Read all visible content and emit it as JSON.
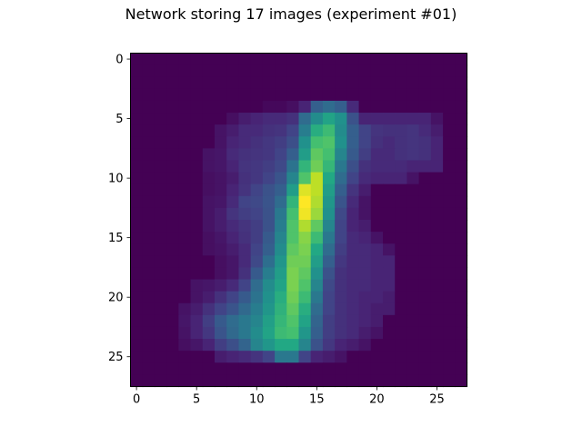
{
  "chart_data": {
    "type": "heatmap",
    "title": "Network storing 17 images (experiment #01)",
    "colormap": "viridis",
    "grid": false,
    "rows": 28,
    "cols": 28,
    "xlim": [
      -0.5,
      27.5
    ],
    "ylim": [
      27.5,
      -0.5
    ],
    "xticks": [
      0,
      5,
      10,
      15,
      20,
      25
    ],
    "yticks": [
      0,
      5,
      10,
      15,
      20,
      25
    ],
    "vmin": 0,
    "vmax": 1,
    "values": [
      [
        0,
        0,
        0,
        0,
        0,
        0,
        0,
        0,
        0,
        0,
        0,
        0,
        0,
        0,
        0,
        0,
        0,
        0,
        0,
        0,
        0,
        0,
        0,
        0,
        0,
        0,
        0,
        0
      ],
      [
        0,
        0,
        0,
        0,
        0,
        0,
        0,
        0,
        0,
        0,
        0,
        0,
        0,
        0,
        0,
        0,
        0,
        0,
        0,
        0,
        0,
        0,
        0,
        0,
        0,
        0,
        0,
        0
      ],
      [
        0,
        0,
        0,
        0,
        0,
        0,
        0,
        0,
        0,
        0,
        0,
        0,
        0,
        0,
        0,
        0,
        0,
        0,
        0,
        0,
        0,
        0,
        0,
        0,
        0,
        0,
        0,
        0
      ],
      [
        0,
        0,
        0,
        0,
        0,
        0,
        0,
        0,
        0,
        0,
        0,
        0,
        0,
        0,
        0,
        0,
        0,
        0,
        0,
        0,
        0,
        0,
        0,
        0,
        0,
        0,
        0,
        0
      ],
      [
        0,
        0,
        0,
        0,
        0,
        0,
        0,
        0,
        0,
        0,
        0,
        0.02,
        0.02,
        0.04,
        0.1,
        0.3,
        0.35,
        0.3,
        0.12,
        0,
        0,
        0,
        0,
        0,
        0,
        0,
        0,
        0
      ],
      [
        0,
        0,
        0,
        0,
        0,
        0,
        0,
        0,
        0.04,
        0.08,
        0.1,
        0.12,
        0.12,
        0.14,
        0.35,
        0.48,
        0.58,
        0.5,
        0.25,
        0.1,
        0.1,
        0.1,
        0.1,
        0.1,
        0.1,
        0.05,
        0,
        0
      ],
      [
        0,
        0,
        0,
        0,
        0,
        0,
        0,
        0.05,
        0.08,
        0.12,
        0.12,
        0.14,
        0.15,
        0.2,
        0.42,
        0.62,
        0.68,
        0.48,
        0.3,
        0.2,
        0.15,
        0.14,
        0.14,
        0.15,
        0.12,
        0.08,
        0,
        0
      ],
      [
        0,
        0,
        0,
        0,
        0,
        0,
        0,
        0.05,
        0.1,
        0.12,
        0.14,
        0.16,
        0.18,
        0.24,
        0.5,
        0.7,
        0.72,
        0.5,
        0.3,
        0.2,
        0.14,
        0.12,
        0.14,
        0.15,
        0.14,
        0.1,
        0,
        0
      ],
      [
        0,
        0,
        0,
        0,
        0,
        0,
        0.05,
        0.06,
        0.12,
        0.14,
        0.15,
        0.16,
        0.2,
        0.3,
        0.55,
        0.75,
        0.7,
        0.45,
        0.28,
        0.18,
        0.12,
        0.12,
        0.14,
        0.15,
        0.14,
        0.1,
        0,
        0
      ],
      [
        0,
        0,
        0,
        0,
        0,
        0,
        0.05,
        0.06,
        0.1,
        0.15,
        0.16,
        0.18,
        0.22,
        0.38,
        0.65,
        0.78,
        0.66,
        0.4,
        0.24,
        0.14,
        0.12,
        0.12,
        0.12,
        0.1,
        0.1,
        0.1,
        0,
        0
      ],
      [
        0,
        0,
        0,
        0,
        0,
        0,
        0.04,
        0.05,
        0.08,
        0.14,
        0.16,
        0.2,
        0.26,
        0.45,
        0.72,
        0.9,
        0.6,
        0.35,
        0.2,
        0.12,
        0.1,
        0.1,
        0.1,
        0.05,
        0,
        0,
        0,
        0
      ],
      [
        0,
        0,
        0,
        0,
        0,
        0,
        0.04,
        0.05,
        0.1,
        0.15,
        0.2,
        0.25,
        0.3,
        0.55,
        0.95,
        0.9,
        0.55,
        0.3,
        0.15,
        0.08,
        0,
        0,
        0,
        0,
        0,
        0,
        0,
        0
      ],
      [
        0,
        0,
        0,
        0,
        0,
        0,
        0.05,
        0.06,
        0.12,
        0.2,
        0.22,
        0.26,
        0.35,
        0.65,
        1.0,
        0.88,
        0.52,
        0.26,
        0.12,
        0.05,
        0,
        0,
        0,
        0,
        0,
        0,
        0,
        0
      ],
      [
        0,
        0,
        0,
        0,
        0,
        0,
        0.05,
        0.08,
        0.15,
        0.18,
        0.2,
        0.25,
        0.4,
        0.7,
        0.98,
        0.85,
        0.5,
        0.22,
        0.1,
        0.05,
        0,
        0,
        0,
        0,
        0,
        0,
        0,
        0
      ],
      [
        0,
        0,
        0,
        0,
        0,
        0,
        0.05,
        0.08,
        0.12,
        0.15,
        0.18,
        0.25,
        0.42,
        0.72,
        0.88,
        0.75,
        0.45,
        0.2,
        0.1,
        0.08,
        0,
        0,
        0,
        0,
        0,
        0,
        0,
        0
      ],
      [
        0,
        0,
        0,
        0,
        0,
        0,
        0.04,
        0.06,
        0.1,
        0.14,
        0.18,
        0.28,
        0.45,
        0.72,
        0.82,
        0.68,
        0.4,
        0.2,
        0.12,
        0.1,
        0.05,
        0,
        0,
        0,
        0,
        0,
        0,
        0
      ],
      [
        0,
        0,
        0,
        0,
        0,
        0,
        0.04,
        0.05,
        0.08,
        0.12,
        0.2,
        0.3,
        0.48,
        0.75,
        0.8,
        0.6,
        0.35,
        0.18,
        0.12,
        0.12,
        0.1,
        0.05,
        0,
        0,
        0,
        0,
        0,
        0
      ],
      [
        0,
        0,
        0,
        0,
        0,
        0,
        0,
        0.04,
        0.06,
        0.12,
        0.22,
        0.36,
        0.52,
        0.78,
        0.78,
        0.55,
        0.3,
        0.16,
        0.12,
        0.12,
        0.1,
        0.1,
        0,
        0,
        0,
        0,
        0,
        0
      ],
      [
        0,
        0,
        0,
        0,
        0,
        0,
        0,
        0.04,
        0.06,
        0.14,
        0.28,
        0.42,
        0.55,
        0.8,
        0.75,
        0.5,
        0.25,
        0.14,
        0.12,
        0.12,
        0.1,
        0.1,
        0,
        0,
        0,
        0,
        0,
        0
      ],
      [
        0,
        0,
        0,
        0,
        0,
        0.05,
        0.06,
        0.08,
        0.12,
        0.2,
        0.35,
        0.48,
        0.58,
        0.8,
        0.72,
        0.45,
        0.22,
        0.14,
        0.12,
        0.12,
        0.1,
        0.1,
        0,
        0,
        0,
        0,
        0,
        0
      ],
      [
        0,
        0,
        0,
        0,
        0,
        0.05,
        0.08,
        0.14,
        0.2,
        0.28,
        0.38,
        0.5,
        0.62,
        0.78,
        0.68,
        0.4,
        0.2,
        0.14,
        0.12,
        0.1,
        0.1,
        0.08,
        0,
        0,
        0,
        0,
        0,
        0
      ],
      [
        0,
        0,
        0,
        0,
        0.05,
        0.08,
        0.14,
        0.2,
        0.26,
        0.34,
        0.42,
        0.52,
        0.64,
        0.75,
        0.62,
        0.35,
        0.2,
        0.14,
        0.12,
        0.1,
        0.08,
        0.08,
        0,
        0,
        0,
        0,
        0,
        0
      ],
      [
        0,
        0,
        0,
        0,
        0.06,
        0.1,
        0.18,
        0.28,
        0.35,
        0.4,
        0.45,
        0.56,
        0.66,
        0.72,
        0.58,
        0.32,
        0.18,
        0.14,
        0.12,
        0.1,
        0.08,
        0,
        0,
        0,
        0,
        0,
        0,
        0
      ],
      [
        0,
        0,
        0,
        0,
        0.05,
        0.1,
        0.16,
        0.26,
        0.34,
        0.4,
        0.48,
        0.58,
        0.68,
        0.7,
        0.52,
        0.3,
        0.18,
        0.14,
        0.12,
        0.08,
        0.05,
        0,
        0,
        0,
        0,
        0,
        0,
        0
      ],
      [
        0,
        0,
        0,
        0,
        0.04,
        0.06,
        0.1,
        0.18,
        0.24,
        0.32,
        0.45,
        0.52,
        0.6,
        0.6,
        0.45,
        0.25,
        0.16,
        0.1,
        0.08,
        0.05,
        0,
        0,
        0,
        0,
        0,
        0,
        0,
        0
      ],
      [
        0,
        0,
        0,
        0,
        0,
        0,
        0,
        0.08,
        0.1,
        0.12,
        0.15,
        0.2,
        0.4,
        0.4,
        0.2,
        0.1,
        0.08,
        0.05,
        0,
        0,
        0,
        0,
        0,
        0,
        0,
        0,
        0,
        0
      ],
      [
        0,
        0,
        0,
        0,
        0,
        0,
        0,
        0,
        0,
        0,
        0,
        0,
        0,
        0,
        0,
        0,
        0,
        0,
        0,
        0,
        0,
        0,
        0,
        0,
        0,
        0,
        0,
        0
      ],
      [
        0,
        0,
        0,
        0,
        0,
        0,
        0,
        0,
        0,
        0,
        0,
        0,
        0,
        0,
        0,
        0,
        0,
        0,
        0,
        0,
        0,
        0,
        0,
        0,
        0,
        0,
        0,
        0
      ]
    ]
  }
}
